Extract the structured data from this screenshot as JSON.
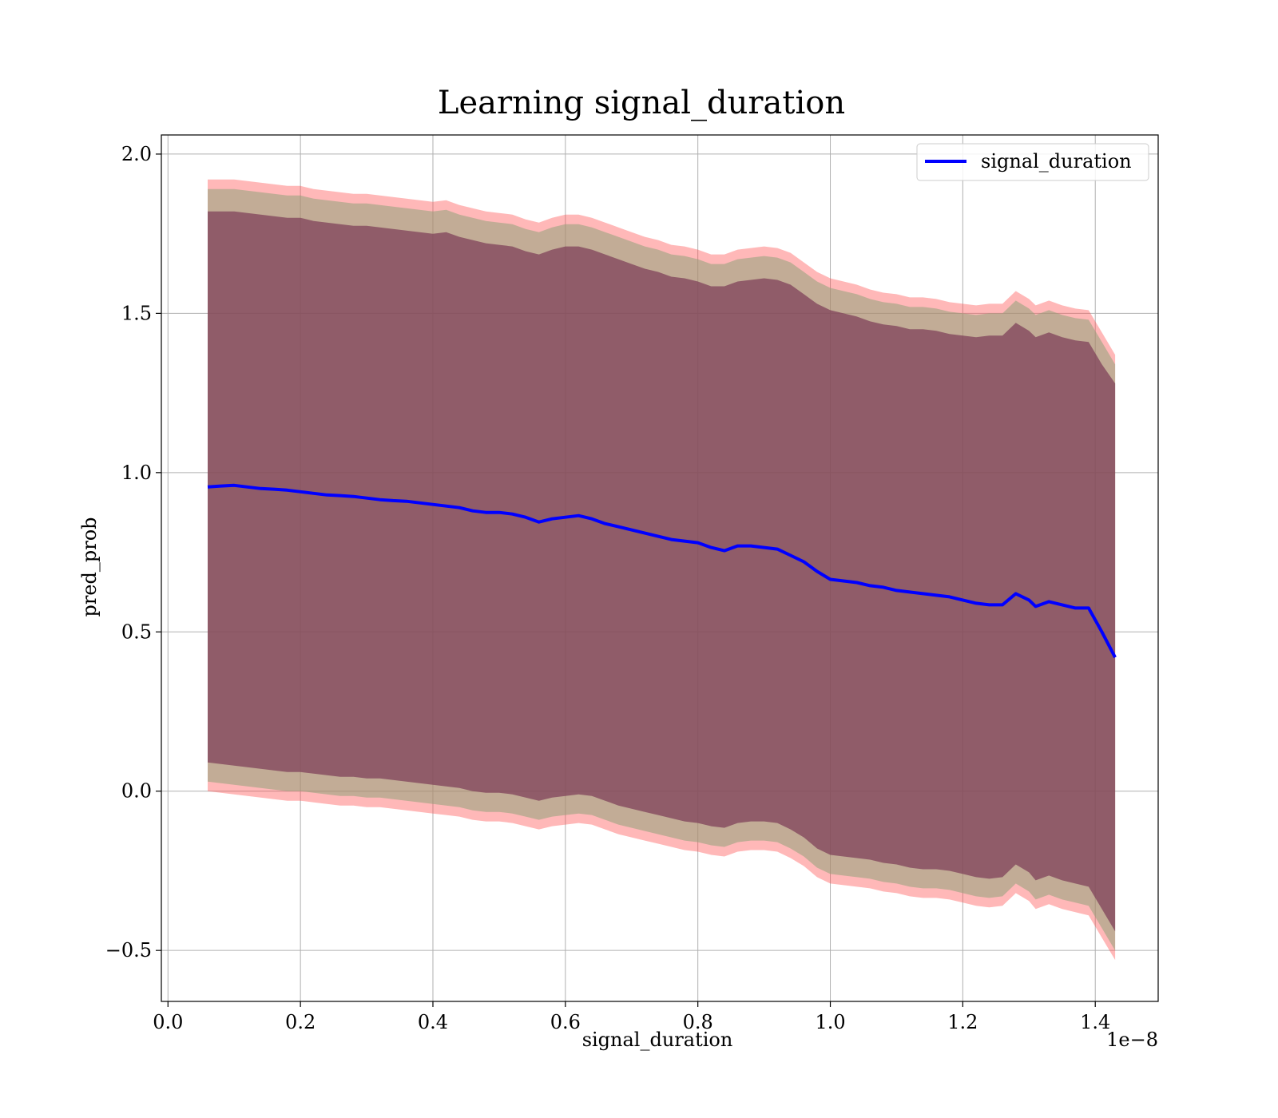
{
  "chart_data": {
    "type": "area",
    "title": "Learning signal_duration",
    "xlabel": "signal_duration",
    "ylabel": "pred_prob",
    "x_offset_text": "1e−8",
    "xlim": [
      -0.01,
      1.495
    ],
    "ylim": [
      -0.66,
      2.06
    ],
    "x_ticks": [
      0.0,
      0.2,
      0.4,
      0.6,
      0.8,
      1.0,
      1.2,
      1.4
    ],
    "x_tick_labels": [
      "0.0",
      "0.2",
      "0.4",
      "0.6",
      "0.8",
      "1.0",
      "1.2",
      "1.4"
    ],
    "y_ticks": [
      -0.5,
      0.0,
      0.5,
      1.0,
      1.5,
      2.0
    ],
    "y_tick_labels": [
      "−0.5",
      "0.0",
      "0.5",
      "1.0",
      "1.5",
      "2.0"
    ],
    "grid": true,
    "legend_position": "top-right",
    "series": [
      {
        "name": "signal_duration",
        "color": "#0000ff",
        "x": [
          0.06,
          0.08,
          0.1,
          0.12,
          0.14,
          0.16,
          0.18,
          0.2,
          0.22,
          0.24,
          0.26,
          0.28,
          0.3,
          0.32,
          0.34,
          0.36,
          0.38,
          0.4,
          0.42,
          0.44,
          0.46,
          0.48,
          0.5,
          0.52,
          0.54,
          0.56,
          0.58,
          0.6,
          0.62,
          0.64,
          0.66,
          0.68,
          0.7,
          0.72,
          0.74,
          0.76,
          0.78,
          0.8,
          0.82,
          0.84,
          0.86,
          0.88,
          0.9,
          0.92,
          0.94,
          0.96,
          0.98,
          1.0,
          1.02,
          1.04,
          1.06,
          1.08,
          1.1,
          1.12,
          1.14,
          1.16,
          1.18,
          1.2,
          1.22,
          1.24,
          1.26,
          1.28,
          1.3,
          1.31,
          1.33,
          1.35,
          1.37,
          1.39,
          1.41,
          1.43
        ],
        "y": [
          0.955,
          0.958,
          0.96,
          0.955,
          0.95,
          0.948,
          0.945,
          0.94,
          0.935,
          0.93,
          0.928,
          0.925,
          0.92,
          0.915,
          0.912,
          0.91,
          0.905,
          0.9,
          0.895,
          0.89,
          0.88,
          0.875,
          0.875,
          0.87,
          0.86,
          0.845,
          0.855,
          0.86,
          0.865,
          0.855,
          0.84,
          0.83,
          0.82,
          0.81,
          0.8,
          0.79,
          0.785,
          0.78,
          0.765,
          0.755,
          0.77,
          0.77,
          0.765,
          0.76,
          0.74,
          0.72,
          0.69,
          0.665,
          0.66,
          0.655,
          0.645,
          0.64,
          0.63,
          0.625,
          0.62,
          0.615,
          0.61,
          0.6,
          0.59,
          0.585,
          0.585,
          0.62,
          0.6,
          0.58,
          0.595,
          0.585,
          0.575,
          0.575,
          0.5,
          0.42
        ]
      }
    ],
    "bands": [
      {
        "color": "#ff4d4d",
        "opacity": 0.4,
        "upper": [
          1.92,
          1.92,
          1.92,
          1.915,
          1.91,
          1.905,
          1.9,
          1.9,
          1.89,
          1.885,
          1.88,
          1.875,
          1.875,
          1.87,
          1.865,
          1.86,
          1.855,
          1.85,
          1.855,
          1.84,
          1.83,
          1.82,
          1.815,
          1.81,
          1.795,
          1.785,
          1.8,
          1.81,
          1.81,
          1.8,
          1.785,
          1.77,
          1.755,
          1.74,
          1.73,
          1.715,
          1.71,
          1.7,
          1.685,
          1.685,
          1.7,
          1.705,
          1.71,
          1.705,
          1.69,
          1.66,
          1.63,
          1.61,
          1.6,
          1.59,
          1.575,
          1.565,
          1.56,
          1.55,
          1.55,
          1.545,
          1.535,
          1.53,
          1.525,
          1.53,
          1.53,
          1.57,
          1.545,
          1.525,
          1.54,
          1.525,
          1.515,
          1.51,
          1.44,
          1.37
        ],
        "lower": [
          0.0,
          -0.005,
          -0.01,
          -0.015,
          -0.02,
          -0.025,
          -0.03,
          -0.03,
          -0.035,
          -0.04,
          -0.045,
          -0.045,
          -0.05,
          -0.05,
          -0.055,
          -0.06,
          -0.065,
          -0.07,
          -0.075,
          -0.08,
          -0.09,
          -0.095,
          -0.095,
          -0.1,
          -0.11,
          -0.12,
          -0.11,
          -0.105,
          -0.1,
          -0.105,
          -0.12,
          -0.135,
          -0.145,
          -0.155,
          -0.165,
          -0.175,
          -0.185,
          -0.19,
          -0.2,
          -0.205,
          -0.19,
          -0.185,
          -0.185,
          -0.19,
          -0.21,
          -0.235,
          -0.27,
          -0.29,
          -0.295,
          -0.3,
          -0.305,
          -0.315,
          -0.32,
          -0.33,
          -0.335,
          -0.335,
          -0.34,
          -0.35,
          -0.36,
          -0.365,
          -0.36,
          -0.32,
          -0.345,
          -0.37,
          -0.355,
          -0.37,
          -0.38,
          -0.39,
          -0.46,
          -0.53
        ]
      },
      {
        "color": "#8fa27a",
        "opacity": 0.55,
        "upper": [
          1.89,
          1.89,
          1.89,
          1.885,
          1.88,
          1.875,
          1.87,
          1.87,
          1.86,
          1.855,
          1.85,
          1.845,
          1.845,
          1.84,
          1.835,
          1.83,
          1.825,
          1.82,
          1.825,
          1.81,
          1.8,
          1.79,
          1.785,
          1.78,
          1.765,
          1.755,
          1.77,
          1.78,
          1.78,
          1.77,
          1.755,
          1.74,
          1.725,
          1.71,
          1.7,
          1.685,
          1.68,
          1.67,
          1.655,
          1.655,
          1.67,
          1.675,
          1.68,
          1.675,
          1.66,
          1.63,
          1.6,
          1.58,
          1.57,
          1.56,
          1.545,
          1.535,
          1.53,
          1.52,
          1.52,
          1.515,
          1.505,
          1.5,
          1.495,
          1.5,
          1.5,
          1.54,
          1.515,
          1.495,
          1.51,
          1.495,
          1.485,
          1.48,
          1.41,
          1.34
        ],
        "lower": [
          0.03,
          0.025,
          0.02,
          0.015,
          0.01,
          0.005,
          0.0,
          0.0,
          -0.005,
          -0.01,
          -0.015,
          -0.015,
          -0.02,
          -0.02,
          -0.025,
          -0.03,
          -0.035,
          -0.04,
          -0.045,
          -0.05,
          -0.06,
          -0.065,
          -0.065,
          -0.07,
          -0.08,
          -0.09,
          -0.08,
          -0.075,
          -0.07,
          -0.075,
          -0.09,
          -0.105,
          -0.115,
          -0.125,
          -0.135,
          -0.145,
          -0.155,
          -0.16,
          -0.17,
          -0.175,
          -0.16,
          -0.155,
          -0.155,
          -0.16,
          -0.18,
          -0.205,
          -0.24,
          -0.26,
          -0.265,
          -0.27,
          -0.275,
          -0.285,
          -0.29,
          -0.3,
          -0.305,
          -0.305,
          -0.31,
          -0.32,
          -0.33,
          -0.335,
          -0.33,
          -0.29,
          -0.315,
          -0.34,
          -0.325,
          -0.34,
          -0.35,
          -0.36,
          -0.43,
          -0.5
        ]
      },
      {
        "color": "#7a3a55",
        "opacity": 0.7,
        "upper": [
          1.82,
          1.82,
          1.82,
          1.815,
          1.81,
          1.805,
          1.8,
          1.8,
          1.79,
          1.785,
          1.78,
          1.775,
          1.775,
          1.77,
          1.765,
          1.76,
          1.755,
          1.75,
          1.755,
          1.74,
          1.73,
          1.72,
          1.715,
          1.71,
          1.695,
          1.685,
          1.7,
          1.71,
          1.71,
          1.7,
          1.685,
          1.67,
          1.655,
          1.64,
          1.63,
          1.615,
          1.61,
          1.6,
          1.585,
          1.585,
          1.6,
          1.605,
          1.61,
          1.605,
          1.59,
          1.56,
          1.53,
          1.51,
          1.5,
          1.49,
          1.475,
          1.465,
          1.46,
          1.45,
          1.45,
          1.445,
          1.435,
          1.43,
          1.425,
          1.43,
          1.43,
          1.47,
          1.445,
          1.425,
          1.44,
          1.425,
          1.415,
          1.41,
          1.34,
          1.28
        ],
        "lower": [
          0.09,
          0.085,
          0.08,
          0.075,
          0.07,
          0.065,
          0.06,
          0.06,
          0.055,
          0.05,
          0.045,
          0.045,
          0.04,
          0.04,
          0.035,
          0.03,
          0.025,
          0.02,
          0.015,
          0.01,
          0.0,
          -0.005,
          -0.005,
          -0.01,
          -0.02,
          -0.03,
          -0.02,
          -0.015,
          -0.01,
          -0.015,
          -0.03,
          -0.045,
          -0.055,
          -0.065,
          -0.075,
          -0.085,
          -0.095,
          -0.1,
          -0.11,
          -0.115,
          -0.1,
          -0.095,
          -0.095,
          -0.1,
          -0.12,
          -0.145,
          -0.18,
          -0.2,
          -0.205,
          -0.21,
          -0.215,
          -0.225,
          -0.23,
          -0.24,
          -0.245,
          -0.245,
          -0.25,
          -0.26,
          -0.27,
          -0.275,
          -0.27,
          -0.23,
          -0.255,
          -0.28,
          -0.265,
          -0.28,
          -0.29,
          -0.3,
          -0.37,
          -0.44
        ]
      }
    ]
  }
}
